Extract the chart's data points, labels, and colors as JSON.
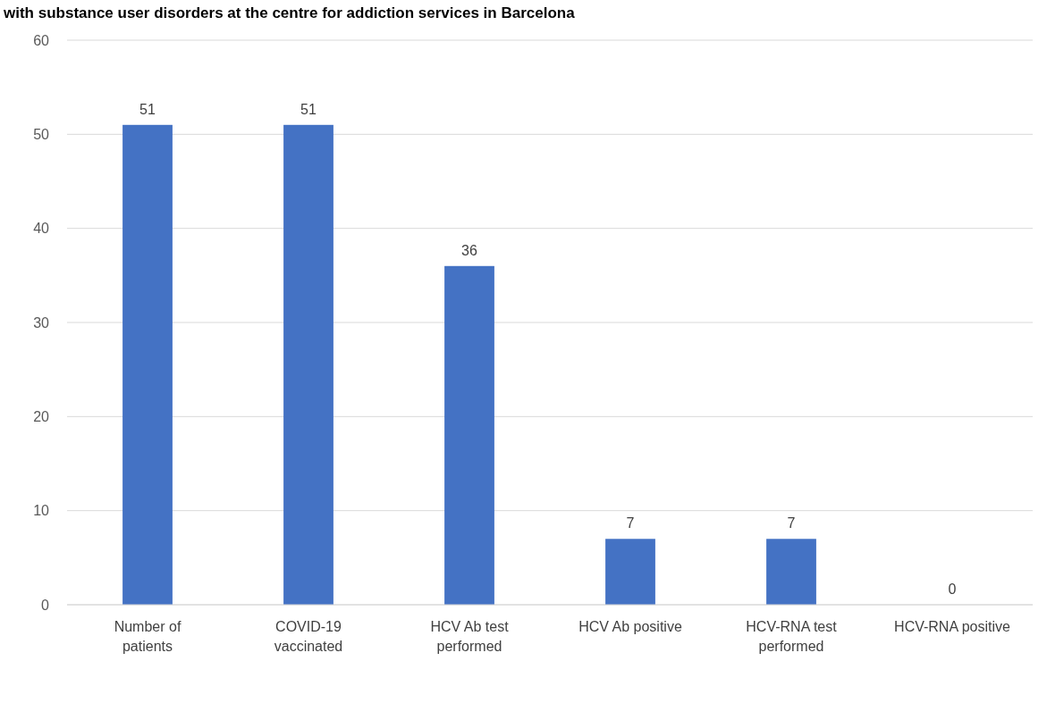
{
  "chart_data": {
    "type": "bar",
    "title": "with substance user disorders at the centre for addiction services in Barcelona",
    "categories": [
      "Number of\npatients",
      "COVID-19\nvaccinated",
      "HCV Ab test\nperformed",
      "HCV Ab positive",
      "HCV-RNA test\nperformed",
      "HCV-RNA positive"
    ],
    "values": [
      51,
      51,
      36,
      7,
      7,
      0
    ],
    "color": "#4472c4",
    "ylim": [
      0,
      60
    ],
    "yticks": [
      0,
      10,
      20,
      30,
      40,
      50,
      60
    ],
    "grid": "y",
    "data_labels": true
  }
}
